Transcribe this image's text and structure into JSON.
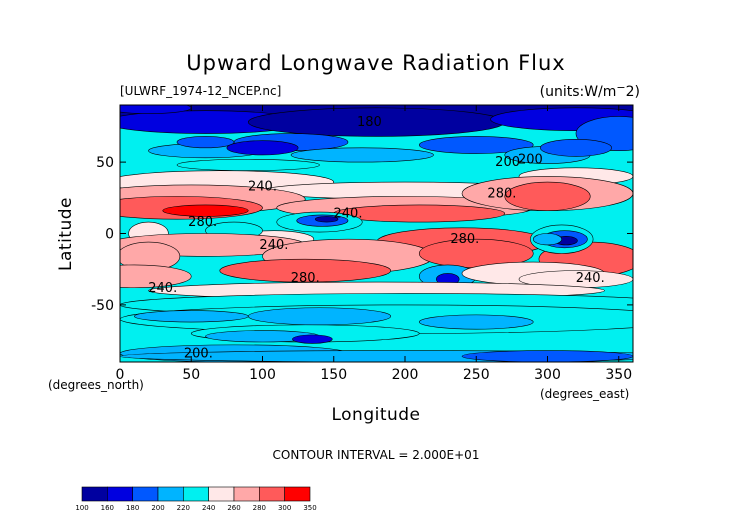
{
  "chart_data": {
    "type": "heatmap",
    "title": "Upward Longwave Radiation Flux",
    "subtitle_left": "[ULWRF_1974-12_NCEP.nc]",
    "subtitle_right": "(units:W/m^2)",
    "xlabel": "Longitude",
    "ylabel": "Latitude",
    "x_unit_label": "(degrees_east)",
    "y_unit_label": "(degrees_north)",
    "xlim": [
      0,
      360
    ],
    "ylim": [
      -90,
      90
    ],
    "xticks": [
      0,
      50,
      100,
      150,
      200,
      250,
      300,
      350
    ],
    "yticks": [
      -50,
      0,
      50
    ],
    "contour_interval_text": "CONTOUR INTERVAL = 2.000E+01",
    "contour_labels": [
      {
        "text": "180",
        "x": 175,
        "y": 78
      },
      {
        "text": "200",
        "x": 272,
        "y": 50
      },
      {
        "text": "240.",
        "x": 100,
        "y": 33
      },
      {
        "text": "280.",
        "x": 58,
        "y": 8
      },
      {
        "text": "240.",
        "x": 160,
        "y": 14
      },
      {
        "text": "240.",
        "x": 108,
        "y": -8
      },
      {
        "text": "280.",
        "x": 130,
        "y": -31
      },
      {
        "text": "240.",
        "x": 30,
        "y": -38
      },
      {
        "text": "280.",
        "x": 242,
        "y": -4
      },
      {
        "text": "240.",
        "x": 330,
        "y": -31
      },
      {
        "text": "200.",
        "x": 55,
        "y": -84
      },
      {
        "text": "280.",
        "x": 268,
        "y": 28
      },
      {
        "text": "200",
        "x": 288,
        "y": 52
      }
    ],
    "colorbar": {
      "levels": [
        100,
        160,
        180,
        200,
        220,
        240,
        260,
        280,
        300,
        350
      ],
      "colors": [
        "#0000a0",
        "#0000e0",
        "#0058ff",
        "#00b4ff",
        "#00f0f0",
        "#ffe8e8",
        "#ffa8a8",
        "#ff5a5a",
        "#ff0000"
      ]
    }
  }
}
